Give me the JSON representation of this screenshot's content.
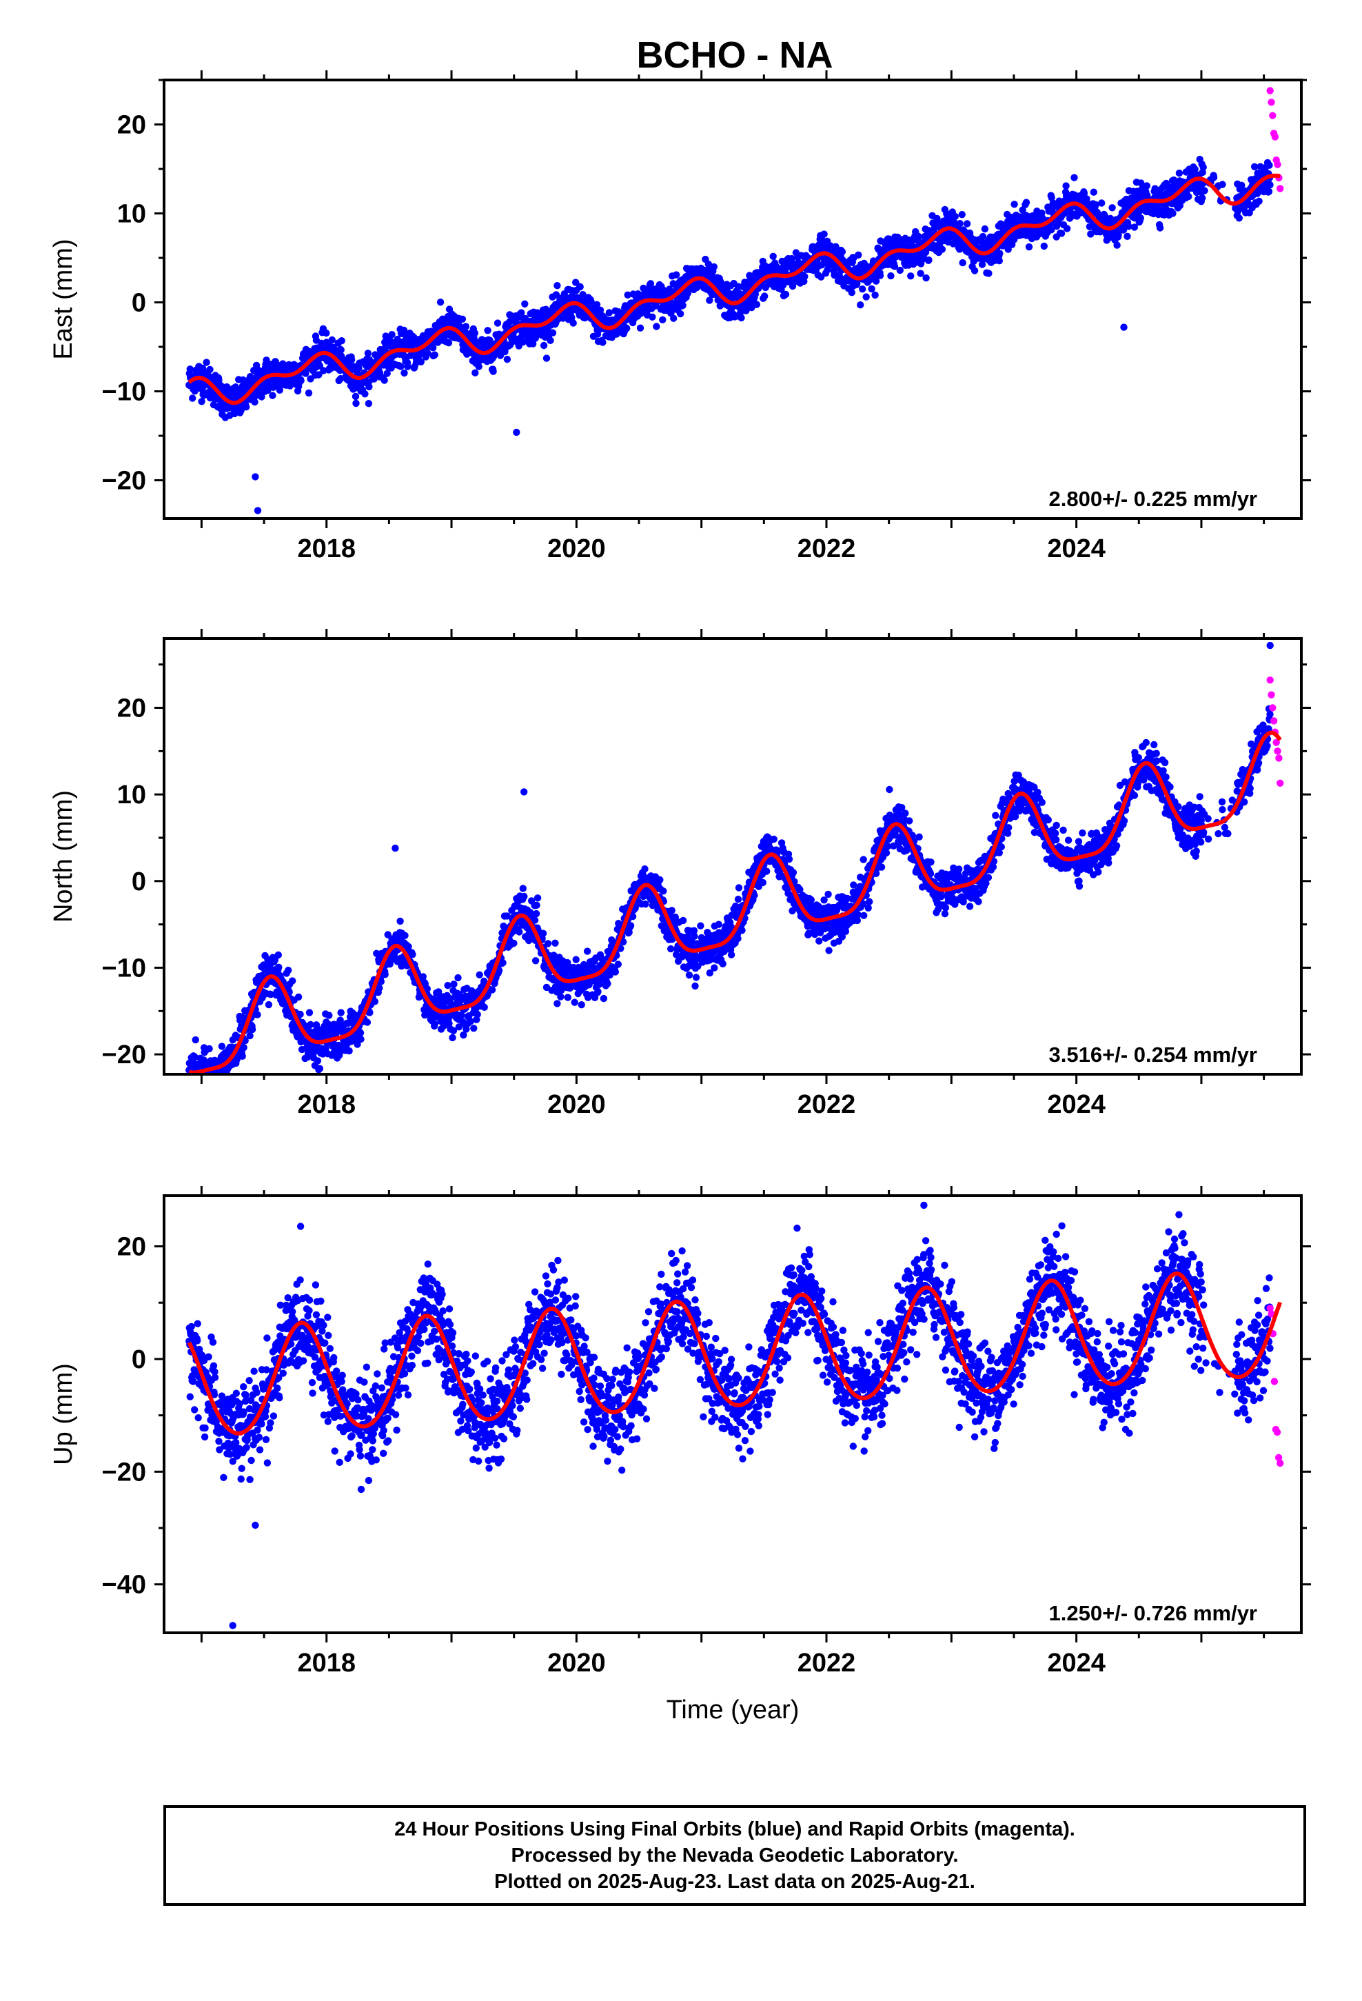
{
  "title": "BCHO - NA",
  "footer": {
    "line1": "24 Hour Positions Using Final Orbits (blue) and Rapid Orbits (magenta).",
    "line2": "Processed by the Nevada Geodetic Laboratory.",
    "line3": "Plotted on 2025-Aug-23. Last data on 2025-Aug-21."
  },
  "colors": {
    "final": "#0000ff",
    "rapid": "#ff00ff",
    "fit": "#ff0000",
    "axis": "#000000"
  },
  "chart_data": [
    {
      "type": "scatter",
      "ylabel": "East (mm)",
      "xlabel": "",
      "annotation": "2.800+/- 0.225 mm/yr",
      "xlim": [
        2016.7,
        2025.8
      ],
      "ylim": [
        -24.3,
        25
      ],
      "xticks": [
        2018,
        2020,
        2022,
        2024
      ],
      "yticks": [
        -20,
        -10,
        0,
        10,
        20
      ],
      "grid": false,
      "rate_mm_per_yr": 2.8,
      "x_start": 2016.9,
      "x_end": 2025.63,
      "model": {
        "offset": -10.4,
        "ref_year": 2016.9,
        "annual_amp": 1.2,
        "annual_peak": 2017.85,
        "semiannual_amp": 0.9,
        "semiannual_peak": 2018.0
      },
      "scatter_sd": 1.0,
      "rapid_points": {
        "x_start": 2025.55,
        "x_end": 2025.63,
        "y_values": [
          23.8,
          22.5,
          21.0,
          19.0,
          18.6,
          16.0,
          15.5,
          14.0,
          12.8
        ]
      },
      "outliers": [
        {
          "x": 2017.45,
          "y": -23.4
        },
        {
          "x": 2017.43,
          "y": -19.6
        },
        {
          "x": 2019.52,
          "y": -14.6
        },
        {
          "x": 2024.38,
          "y": -2.8
        }
      ]
    },
    {
      "type": "scatter",
      "ylabel": "North (mm)",
      "xlabel": "",
      "annotation": "3.516+/- 0.254 mm/yr",
      "xlim": [
        2016.7,
        2025.8
      ],
      "ylim": [
        -22.3,
        28
      ],
      "xticks": [
        2018,
        2020,
        2022,
        2024
      ],
      "yticks": [
        -20,
        -10,
        0,
        10,
        20
      ],
      "grid": false,
      "rate_mm_per_yr": 3.516,
      "x_start": 2016.9,
      "x_end": 2025.63,
      "model": {
        "offset": -19.0,
        "ref_year": 2016.9,
        "annual_amp": 4.5,
        "annual_peak": 2017.55,
        "semiannual_amp": 1.2,
        "semiannual_peak": 2017.55
      },
      "scatter_sd": 1.2,
      "rapid_points": {
        "x_start": 2025.55,
        "x_end": 2025.63,
        "y_values": [
          23.2,
          21.5,
          20.0,
          18.5,
          17.2,
          16.0,
          15.0,
          14.2,
          11.3
        ]
      },
      "outliers": [
        {
          "x": 2025.55,
          "y": 27.2
        },
        {
          "x": 2019.58,
          "y": 10.3
        },
        {
          "x": 2018.55,
          "y": 3.8
        }
      ]
    },
    {
      "type": "scatter",
      "ylabel": "Up (mm)",
      "xlabel": "Time (year)",
      "annotation": "1.250+/- 0.726 mm/yr",
      "xlim": [
        2016.7,
        2025.8
      ],
      "ylim": [
        -48.6,
        29
      ],
      "xticks": [
        2018,
        2020,
        2022,
        2024
      ],
      "yticks": [
        -40,
        -20,
        0,
        20
      ],
      "grid": false,
      "rate_mm_per_yr": 1.25,
      "x_start": 2016.9,
      "x_end": 2025.63,
      "model": {
        "offset": -5.0,
        "ref_year": 2016.9,
        "annual_amp": 9.5,
        "annual_peak": 2017.8,
        "semiannual_amp": 0.8,
        "semiannual_peak": 2017.8
      },
      "scatter_sd": 4.0,
      "rapid_points": {
        "x_start": 2025.55,
        "x_end": 2025.63,
        "y_values": [
          9.0,
          8.0,
          4.5,
          -4.0,
          -12.5,
          -13.0,
          -17.5,
          -18.5
        ]
      },
      "outliers": [
        {
          "x": 2017.25,
          "y": -47.3
        },
        {
          "x": 2022.78,
          "y": 27.3
        },
        {
          "x": 2017.43,
          "y": -29.5
        }
      ]
    }
  ]
}
